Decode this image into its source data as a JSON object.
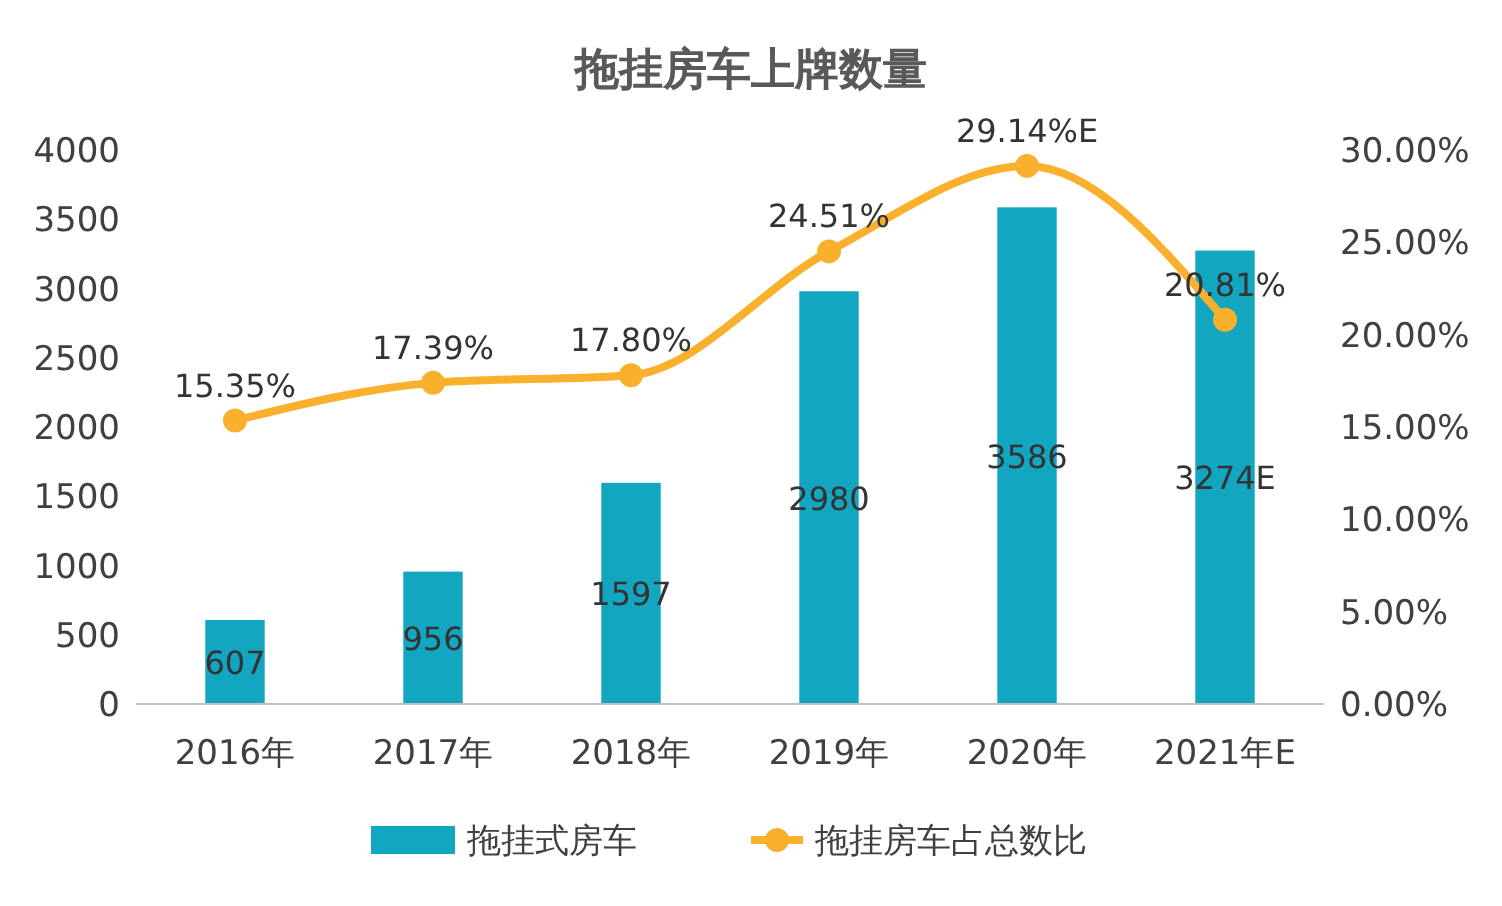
{
  "chart_data": {
    "type": "bar",
    "title": "拖挂房车上牌数量",
    "categories": [
      "2016年",
      "2017年",
      "2018年",
      "2019年",
      "2020年",
      "2021年E"
    ],
    "series": [
      {
        "name": "拖挂式房车",
        "color": "#13a6c0",
        "values": [
          607,
          956,
          1597,
          2980,
          3586,
          3274
        ],
        "value_labels": [
          "607",
          "956",
          "1597",
          "2980",
          "3586",
          "3274E"
        ]
      },
      {
        "name": "拖挂房车占总数比",
        "type": "line",
        "axis": "y2",
        "color": "#f9b12d",
        "marker": "circle",
        "values": [
          15.35,
          17.39,
          17.8,
          24.51,
          29.14,
          20.81
        ],
        "value_labels": [
          "15.35%",
          "17.39%",
          "17.80%",
          "24.51%",
          "29.14%E",
          "20.81%"
        ]
      }
    ],
    "ylim": [
      0,
      4000
    ],
    "yticks": [
      0,
      500,
      1000,
      1500,
      2000,
      2500,
      3000,
      3500,
      4000
    ],
    "y2lim": [
      0,
      30
    ],
    "y2ticks": [
      {
        "value": 0,
        "label": "0.00%"
      },
      {
        "value": 5,
        "label": "5.00%"
      },
      {
        "value": 10,
        "label": "10.00%"
      },
      {
        "value": 15,
        "label": "15.00%"
      },
      {
        "value": 20,
        "label": "20.00%"
      },
      {
        "value": 25,
        "label": "25.00%"
      },
      {
        "value": 30,
        "label": "30.00%"
      }
    ],
    "grid": false,
    "legend": "bottom"
  }
}
